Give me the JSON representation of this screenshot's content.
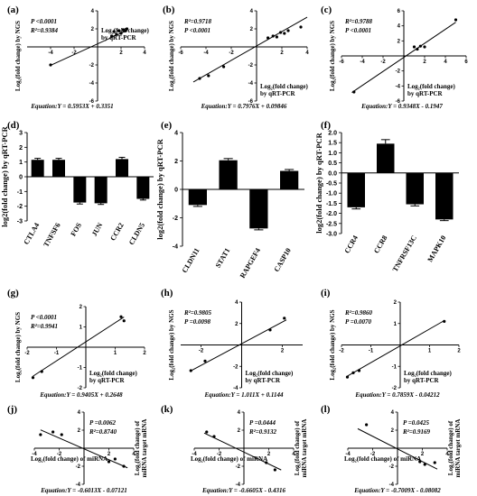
{
  "chart_data": [
    {
      "id": "a",
      "panel_label": "(a)",
      "type": "scatter",
      "xlim": [
        -6,
        4
      ],
      "ylim": [
        -6,
        4
      ],
      "xticks": [
        -4,
        -2,
        2,
        4
      ],
      "yticks": [
        -6,
        -4,
        -2,
        2,
        4
      ],
      "ylabel": "Log₂(fold change) by NGS",
      "xlabel_lines": [
        "Log₂(fold change)",
        "by qRT-PCR"
      ],
      "xlabel_pos": "above",
      "stats": [
        "P <0.0001",
        "R²=0.9384"
      ],
      "stats_pos": "top-left",
      "equation": "Equation:Y = 0.5953X + 0.3351",
      "fit": {
        "slope": 0.5953,
        "intercept": 0.3351,
        "x_range": [
          -4,
          2.5
        ]
      },
      "points": [
        [
          -4,
          -2
        ],
        [
          1.2,
          1.2
        ],
        [
          1.4,
          1.7
        ],
        [
          1.6,
          1.4
        ],
        [
          1.8,
          1.8
        ],
        [
          2.0,
          1.5
        ],
        [
          2.2,
          1.9
        ],
        [
          2.4,
          1.8
        ],
        [
          2.5,
          2.0
        ]
      ]
    },
    {
      "id": "b",
      "panel_label": "(b)",
      "type": "scatter",
      "xlim": [
        -6,
        4
      ],
      "ylim": [
        -6,
        4
      ],
      "xticks": [
        -6,
        -4,
        -2,
        2,
        4
      ],
      "yticks": [
        -6,
        -4,
        -2,
        2,
        4
      ],
      "ylabel": "Log₂(fold change) by NGS",
      "xlabel_lines": [
        "Log₂(fold change)",
        "by qRT-PCR"
      ],
      "xlabel_pos": "below",
      "stats": [
        "R²=0.9718",
        "P <0.0001"
      ],
      "stats_pos": "top-left",
      "equation": "Equation:Y = 0.7976X + 0.09846",
      "fit": {
        "slope": 0.7976,
        "intercept": 0.09846,
        "x_range": [
          -5,
          4
        ]
      },
      "points": [
        [
          -4.5,
          -3.5
        ],
        [
          -3.8,
          -3.2
        ],
        [
          -2.6,
          -2.2
        ],
        [
          0.9,
          1.0
        ],
        [
          1.3,
          1.2
        ],
        [
          1.6,
          1.1
        ],
        [
          1.9,
          1.6
        ],
        [
          2.2,
          1.5
        ],
        [
          2.5,
          1.8
        ],
        [
          3.5,
          2.2
        ]
      ]
    },
    {
      "id": "c",
      "panel_label": "(c)",
      "type": "scatter",
      "xlim": [
        -6,
        6
      ],
      "ylim": [
        -6,
        6
      ],
      "xticks": [
        -6,
        -4,
        -2,
        2,
        4,
        6
      ],
      "yticks": [
        -6,
        -4,
        -2,
        2,
        4,
        6
      ],
      "ylabel": "Log₂(fold change) by NGS",
      "xlabel_lines": [
        "Log₂(fold change)",
        "by qRT-PCR"
      ],
      "xlabel_pos": "below",
      "stats": [
        "R²=0.9788",
        "P <0.0001"
      ],
      "stats_pos": "top-left",
      "equation": "Equation:Y = 0.9348X - 0.1947",
      "fit": {
        "slope": 0.9348,
        "intercept": -0.1947,
        "x_range": [
          -5,
          5
        ]
      },
      "points": [
        [
          -4.8,
          -4.8
        ],
        [
          1.0,
          1.2
        ],
        [
          1.3,
          0.9
        ],
        [
          1.6,
          1.3
        ],
        [
          2.0,
          1.2
        ],
        [
          5.0,
          4.8
        ]
      ]
    },
    {
      "id": "d",
      "panel_label": "(d)",
      "type": "bar",
      "categories": [
        "CTLA4",
        "TNFSF6",
        "FOS",
        "JUN",
        "CCR2",
        "CLDN5"
      ],
      "values": [
        1.15,
        1.15,
        -1.75,
        -1.8,
        1.2,
        -1.5
      ],
      "errors": [
        0.1,
        0.1,
        0.1,
        0.08,
        0.12,
        0.08
      ],
      "ylim": [
        -3,
        3
      ],
      "yticks": [
        -3,
        -2,
        -1,
        0,
        1,
        2,
        3
      ],
      "ylabel": "log2(fold change) by qRT-PCR"
    },
    {
      "id": "e",
      "panel_label": "(e)",
      "type": "bar",
      "categories": [
        "CLDN11",
        "STAT1",
        "RAPGEF4",
        "CASP10"
      ],
      "values": [
        -1.1,
        2.05,
        -2.75,
        1.3
      ],
      "errors": [
        0.1,
        0.12,
        0.1,
        0.1
      ],
      "ylim": [
        -4,
        4
      ],
      "yticks": [
        -4,
        -2,
        0,
        2,
        4
      ],
      "ylabel": "log2(fold change) by qRT-PCR"
    },
    {
      "id": "f",
      "panel_label": "(f)",
      "type": "bar",
      "categories": [
        "CCR4",
        "CCR8",
        "TNFRSF13C",
        "MAPK10"
      ],
      "values": [
        -1.7,
        1.45,
        -1.55,
        -2.3
      ],
      "errors": [
        0.08,
        0.2,
        0.08,
        0.06
      ],
      "ylim": [
        -3,
        2
      ],
      "yticks": [
        -3.0,
        -2.5,
        -2.0,
        -1.5,
        -1.0,
        -0.5,
        0.0,
        0.5,
        1.0,
        1.5,
        2.0
      ],
      "ylabel": "log2(fold change) by qRT-PCR"
    },
    {
      "id": "g",
      "panel_label": "(g)",
      "type": "scatter",
      "xlim": [
        -2,
        2
      ],
      "ylim": [
        -2,
        2
      ],
      "xticks": [
        -2,
        -1,
        1,
        2
      ],
      "yticks": [
        -2,
        -1,
        1,
        2
      ],
      "ylabel": "Log₂(fold change) by NGS",
      "xlabel_lines": [
        "Log₂(fold change)",
        "by qRT-PCR"
      ],
      "xlabel_pos": "below",
      "stats": [
        "P <0.0001",
        "R²=0.9941"
      ],
      "stats_pos": "top-left",
      "equation": "Equation:Y = 0.9405X + 0.2648",
      "fit": {
        "slope": 0.9405,
        "intercept": 0.2648,
        "x_range": [
          -1.8,
          1.3
        ]
      },
      "points": [
        [
          -1.8,
          -1.5
        ],
        [
          -1.5,
          -1.2
        ],
        [
          1.2,
          1.5
        ],
        [
          1.3,
          1.3
        ]
      ]
    },
    {
      "id": "h",
      "panel_label": "(h)",
      "type": "scatter",
      "xlim": [
        -3,
        3
      ],
      "ylim": [
        -4,
        4
      ],
      "xticks": [
        -2,
        2
      ],
      "yticks": [
        -4,
        -2,
        2,
        4
      ],
      "ylabel": "Log₂(fold change) by NGS",
      "xlabel_lines": [
        "Log₂(fold change)",
        "by qRT-PCR"
      ],
      "xlabel_pos": "below",
      "stats": [
        "R²=0.9805",
        "P =0.0098"
      ],
      "stats_pos": "top-left",
      "equation": "Equation:Y = 1.011X + 0.1144",
      "fit": {
        "slope": 1.011,
        "intercept": 0.1144,
        "x_range": [
          -2.5,
          2.2
        ]
      },
      "points": [
        [
          -2.5,
          -2.4
        ],
        [
          -1.8,
          -1.5
        ],
        [
          1.4,
          1.4
        ],
        [
          2.1,
          2.5
        ]
      ]
    },
    {
      "id": "i",
      "panel_label": "(i)",
      "type": "scatter",
      "xlim": [
        -2,
        2
      ],
      "ylim": [
        -2,
        2
      ],
      "xticks": [
        -2,
        -1,
        1,
        2
      ],
      "yticks": [
        -2,
        -1,
        1,
        2
      ],
      "ylabel": "Log₂(fold change) by NGS",
      "xlabel_lines": [
        "Log₂(fold change)",
        "by qRT-PCR"
      ],
      "xlabel_pos": "below",
      "stats": [
        "R²=0.9860",
        "P =0.0070"
      ],
      "stats_pos": "top-left",
      "equation": "Equation:Y = 0.7859X - 0.04212",
      "fit": {
        "slope": 0.7859,
        "intercept": -0.04212,
        "x_range": [
          -1.8,
          1.5
        ]
      },
      "points": [
        [
          -1.8,
          -1.5
        ],
        [
          -1.6,
          -1.3
        ],
        [
          -1.4,
          -1.2
        ],
        [
          1.5,
          1.1
        ]
      ]
    },
    {
      "id": "j",
      "panel_label": "(j)",
      "type": "scatter",
      "xlim": [
        -4,
        4
      ],
      "ylim": [
        -4,
        4
      ],
      "xticks": [
        -4,
        -2,
        2,
        4
      ],
      "yticks": [
        -4,
        -2,
        2,
        4
      ],
      "ylabel_right_lines": [
        "Log₂(fold change) of",
        "miRNA target mRNA"
      ],
      "xlabel_lines": [
        "Log₂(fold change) of miRNA"
      ],
      "xlabel_pos": "below-left",
      "stats": [
        "P =0.0062",
        "R²=0.8740"
      ],
      "stats_pos": "top-right",
      "equation": "Equation:Y = -0.6013X - 0.07121",
      "fit": {
        "slope": -0.6013,
        "intercept": -0.07121,
        "x_range": [
          -3.5,
          3.5
        ]
      },
      "points": [
        [
          -3.5,
          1.5
        ],
        [
          -2.5,
          1.8
        ],
        [
          -1.8,
          1.5
        ],
        [
          2.0,
          -1.5
        ],
        [
          2.5,
          -1.2
        ],
        [
          3.2,
          -2.0
        ]
      ]
    },
    {
      "id": "k",
      "panel_label": "(k)",
      "type": "scatter",
      "xlim": [
        -4,
        4
      ],
      "ylim": [
        -4,
        4
      ],
      "xticks": [
        -4,
        -2,
        2,
        4
      ],
      "yticks": [
        -4,
        -2,
        2,
        4
      ],
      "ylabel_right_lines": [
        "Log₂(fold change) of",
        "miRNA target mRNA"
      ],
      "xlabel_lines": [
        "Log₂(fold change) of miRNA"
      ],
      "xlabel_pos": "below-left",
      "stats": [
        "P =0.0444",
        "R²=0.9132"
      ],
      "stats_pos": "top-right",
      "equation": "Equation:Y = -0.6605X - 0.4316",
      "fit": {
        "slope": -0.6605,
        "intercept": -0.4316,
        "x_range": [
          -3.2,
          3.0
        ]
      },
      "points": [
        [
          -3.0,
          1.8
        ],
        [
          -2.4,
          1.3
        ],
        [
          1.8,
          -1.6
        ],
        [
          2.5,
          -2.4
        ]
      ]
    },
    {
      "id": "l",
      "panel_label": "(l)",
      "type": "scatter",
      "xlim": [
        -4,
        4
      ],
      "ylim": [
        -4,
        4
      ],
      "xticks": [
        -4,
        -2,
        2,
        4
      ],
      "yticks": [
        -4,
        -2,
        2,
        4
      ],
      "ylabel_right_lines": [
        "Log₂(fold change) of",
        "miRNA target mRNA"
      ],
      "xlabel_lines": [
        "Log₂(fold change) of miRNA"
      ],
      "xlabel_pos": "below-left",
      "stats": [
        "P =0.0425",
        "R²=0.9169"
      ],
      "stats_pos": "top-right",
      "equation": "Equation:Y = -0.7009X - 0.08082",
      "fit": {
        "slope": -0.7009,
        "intercept": -0.08082,
        "x_range": [
          -3.2,
          3.2
        ]
      },
      "points": [
        [
          -2.5,
          2.6
        ],
        [
          1.8,
          -1.5
        ],
        [
          2.2,
          -1.8
        ],
        [
          3.0,
          -1.6
        ]
      ]
    }
  ]
}
